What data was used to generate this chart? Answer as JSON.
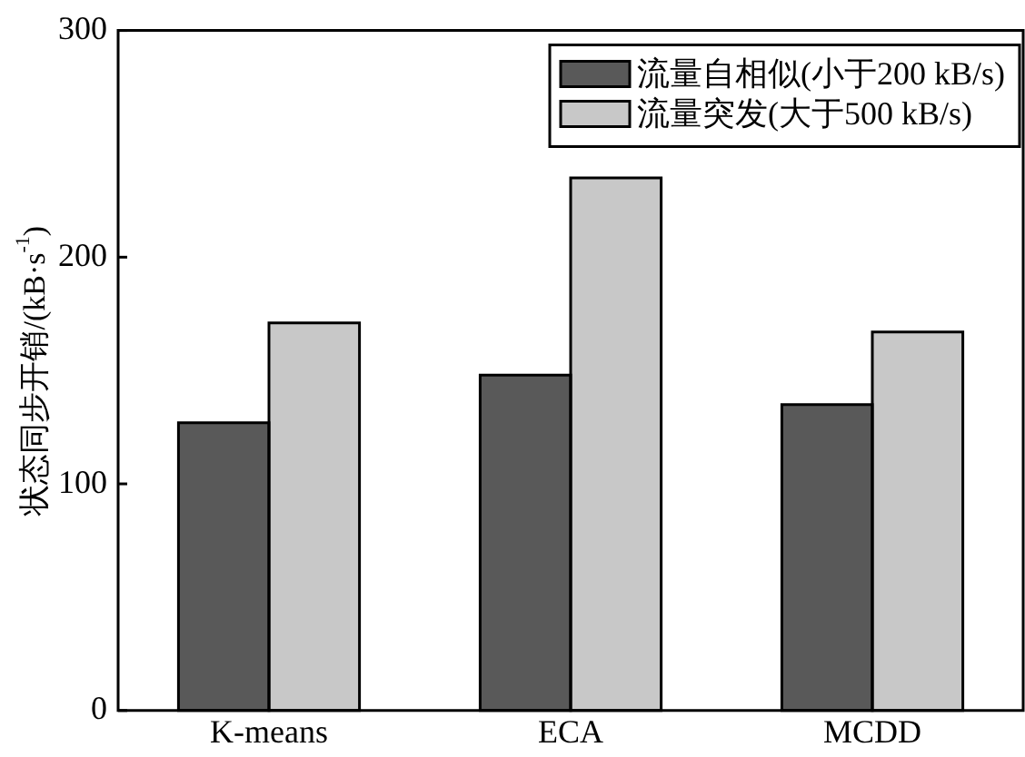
{
  "chart_data": {
    "type": "bar",
    "ylabel": "状态同步开销/(kB·s$^{-1}$)",
    "categories": [
      "K-means",
      "ECA",
      "MCDD"
    ],
    "series": [
      {
        "name": "流量自相似(小于200 kB/s)",
        "color": "#595959",
        "values": [
          127,
          148,
          135
        ]
      },
      {
        "name": "流量突发(大于500 kB/s)",
        "color": "#c8c8c8",
        "values": [
          171,
          235,
          167
        ]
      }
    ],
    "ylim": [
      0,
      300
    ],
    "yticks": [
      0,
      100,
      200,
      300
    ],
    "grid": false,
    "legend": "top right"
  }
}
